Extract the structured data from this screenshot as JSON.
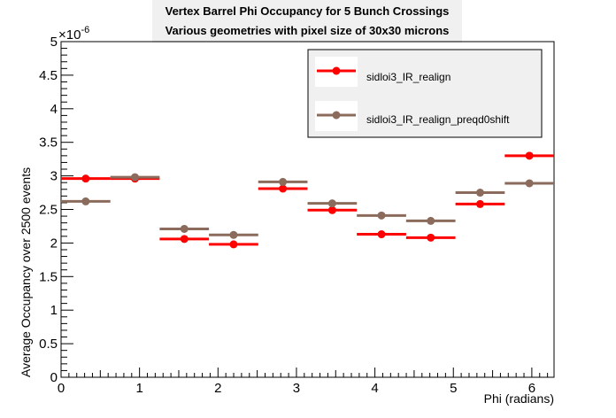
{
  "chart_data": {
    "type": "scatter",
    "title_lines": [
      "Vertex Barrel Phi Occupancy for 5 Bunch Crossings",
      "Various geometries with pixel size of 30x30 microns"
    ],
    "xlabel": "Phi (radians)",
    "ylabel": "Average Occupancy over 2500 events",
    "y_exponent_label": "×10",
    "y_exponent_power": "-6",
    "xlim": [
      0,
      6.2832
    ],
    "ylim": [
      0,
      5
    ],
    "x_ticks": [
      "0",
      "1",
      "2",
      "3",
      "4",
      "5",
      "6"
    ],
    "y_ticks": [
      "0",
      "0.5",
      "1",
      "1.5",
      "2",
      "2.5",
      "3",
      "3.5",
      "4",
      "4.5",
      "5"
    ],
    "bin_width": 0.6283,
    "series": [
      {
        "name": "sidloi3_IR_realign",
        "color": "#ff0000",
        "x": [
          0.314,
          0.942,
          1.571,
          2.199,
          2.827,
          3.456,
          4.084,
          4.712,
          5.341,
          5.969
        ],
        "y": [
          2.96,
          2.96,
          2.06,
          1.98,
          2.81,
          2.49,
          2.13,
          2.08,
          2.58,
          3.3
        ]
      },
      {
        "name": "sidloi3_IR_realign_preqd0shift",
        "color": "#8b6b5c",
        "x": [
          0.314,
          0.942,
          1.571,
          2.199,
          2.827,
          3.456,
          4.084,
          4.712,
          5.341,
          5.969
        ],
        "y": [
          2.62,
          2.98,
          2.21,
          2.12,
          2.91,
          2.59,
          2.41,
          2.33,
          2.75,
          2.89
        ]
      }
    ],
    "legend_position": "top-right"
  }
}
